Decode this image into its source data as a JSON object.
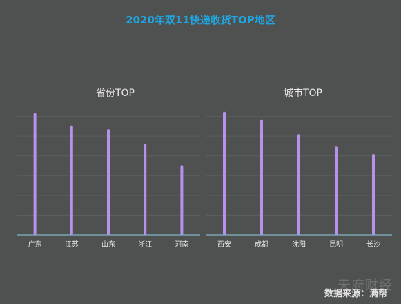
{
  "title": "2020年双11快递收货TOP地区",
  "source": "数据来源：满帮",
  "watermark": "天府财经",
  "colors": {
    "background": "#4f5050",
    "title": "#1fa6e0",
    "bar": "#b792ea",
    "axis": "#7fb6c6",
    "grid": "#5d5e5e"
  },
  "chart_data": [
    {
      "type": "bar",
      "title": "省份TOP",
      "categories": [
        "广东",
        "江苏",
        "山东",
        "浙江",
        "河南"
      ],
      "values": [
        98,
        88,
        85,
        73,
        56
      ],
      "ylim": [
        0,
        100
      ],
      "grid": true
    },
    {
      "type": "bar",
      "title": "城市TOP",
      "categories": [
        "西安",
        "成都",
        "沈阳",
        "昆明",
        "长沙"
      ],
      "values": [
        99,
        93,
        81,
        71,
        65
      ],
      "ylim": [
        0,
        100
      ],
      "grid": true
    }
  ]
}
